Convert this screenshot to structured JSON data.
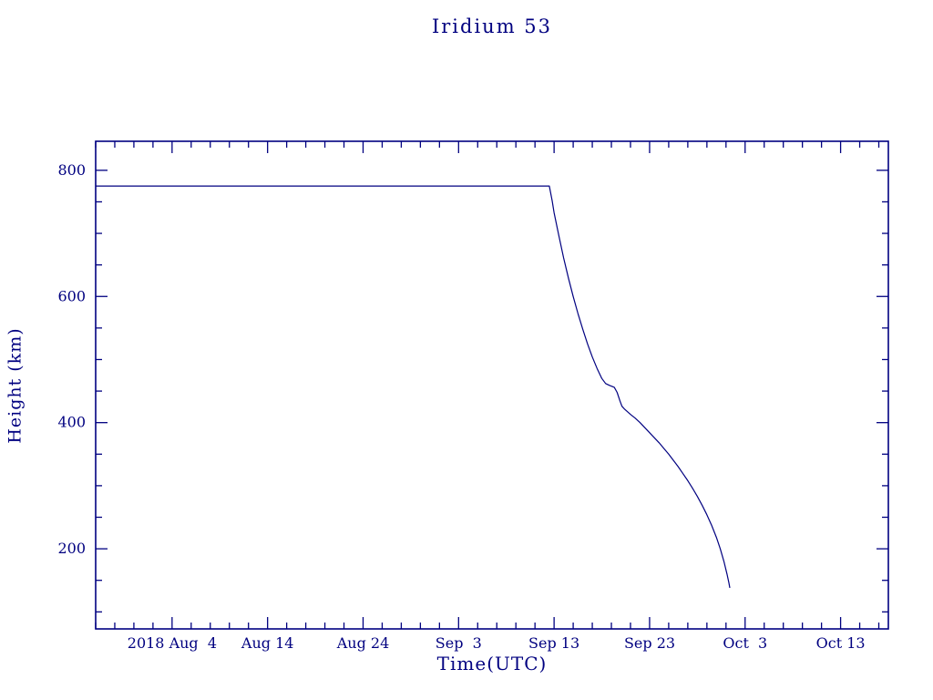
{
  "page": {
    "background": "#ffffff"
  },
  "chart_data": {
    "type": "line",
    "title": "Iridium 53",
    "xlabel": "Time(UTC)",
    "ylabel": "Height (km)",
    "color": "#000080",
    "background": "#ffffff",
    "grid": false,
    "legend": "none",
    "x_axis": {
      "unit": "days relative to first labeled tick (0 = 2018 Aug 4)",
      "lim": [
        -8,
        75
      ],
      "minor_step": 2,
      "major_ticks": [
        {
          "day": 0,
          "label": "2018 Aug  4"
        },
        {
          "day": 10,
          "label": "Aug 14"
        },
        {
          "day": 20,
          "label": "Aug 24"
        },
        {
          "day": 30,
          "label": "Sep  3"
        },
        {
          "day": 40,
          "label": "Sep 13"
        },
        {
          "day": 50,
          "label": "Sep 23"
        },
        {
          "day": 60,
          "label": "Oct  3"
        },
        {
          "day": 70,
          "label": "Oct 13"
        }
      ]
    },
    "y_axis": {
      "unit": "km",
      "lim": [
        73,
        846
      ],
      "minor_step": 50,
      "major_ticks": [
        200,
        400,
        600,
        800
      ]
    },
    "series": [
      {
        "name": "Iridium 53 orbital height",
        "points": [
          [
            -8,
            775
          ],
          [
            39.5,
            775
          ],
          [
            39.8,
            752
          ],
          [
            40,
            733
          ],
          [
            40.5,
            696
          ],
          [
            41,
            661
          ],
          [
            41.5,
            629
          ],
          [
            42,
            600
          ],
          [
            42.5,
            573
          ],
          [
            43,
            548
          ],
          [
            43.5,
            525
          ],
          [
            44,
            504
          ],
          [
            44.5,
            486
          ],
          [
            45,
            470
          ],
          [
            45.4,
            462
          ],
          [
            45.8,
            459
          ],
          [
            46.3,
            456
          ],
          [
            46.6,
            448
          ],
          [
            46.9,
            434
          ],
          [
            47.1,
            426
          ],
          [
            47.4,
            421
          ],
          [
            48,
            413
          ],
          [
            48.5,
            407
          ],
          [
            49,
            400
          ],
          [
            49.5,
            392
          ],
          [
            50,
            384
          ],
          [
            50.5,
            376
          ],
          [
            51,
            368
          ],
          [
            51.5,
            359
          ],
          [
            52,
            350
          ],
          [
            52.5,
            340
          ],
          [
            53,
            330
          ],
          [
            53.5,
            319
          ],
          [
            54,
            308
          ],
          [
            54.5,
            296
          ],
          [
            55,
            283
          ],
          [
            55.5,
            269
          ],
          [
            56,
            254
          ],
          [
            56.5,
            237
          ],
          [
            57,
            218
          ],
          [
            57.4,
            200
          ],
          [
            57.8,
            179
          ],
          [
            58.1,
            160
          ],
          [
            58.3,
            146
          ],
          [
            58.4,
            138
          ]
        ]
      }
    ]
  }
}
